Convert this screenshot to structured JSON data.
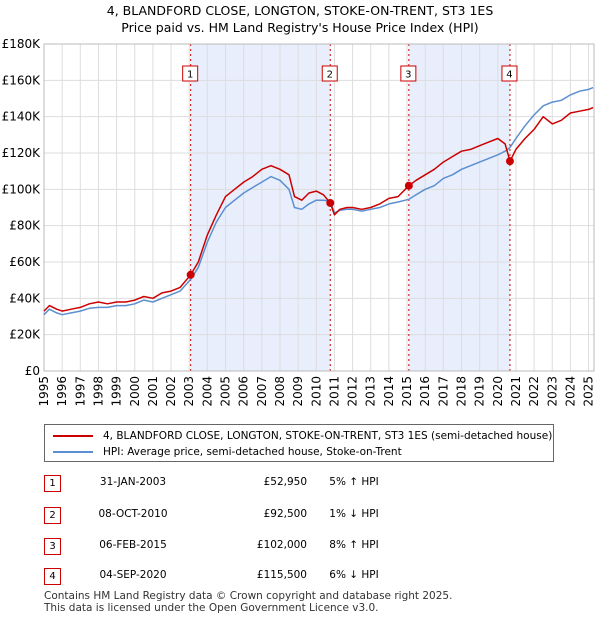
{
  "chart_data": {
    "type": "line",
    "title": "4, BLANDFORD CLOSE, LONGTON, STOKE-ON-TRENT, ST3 1ES",
    "subtitle": "Price paid vs. HM Land Registry's House Price Index (HPI)",
    "xlim": [
      1995,
      2025.3
    ],
    "ylim": [
      0,
      180000
    ],
    "y_ticks": [
      0,
      20000,
      40000,
      60000,
      80000,
      100000,
      120000,
      140000,
      160000,
      180000
    ],
    "y_tick_labels": [
      "£0",
      "£20K",
      "£40K",
      "£60K",
      "£80K",
      "£100K",
      "£120K",
      "£140K",
      "£160K",
      "£180K"
    ],
    "x_ticks": [
      1995,
      1996,
      1997,
      1998,
      1999,
      2000,
      2001,
      2002,
      2003,
      2004,
      2005,
      2006,
      2007,
      2008,
      2009,
      2010,
      2011,
      2012,
      2013,
      2014,
      2015,
      2016,
      2017,
      2018,
      2019,
      2020,
      2021,
      2022,
      2023,
      2024,
      2025
    ],
    "x_tick_labels": [
      "1995",
      "1996",
      "1997",
      "1998",
      "1999",
      "2000",
      "2001",
      "2002",
      "2003",
      "2004",
      "2005",
      "2006",
      "2007",
      "2008",
      "2009",
      "2010",
      "2011",
      "2012",
      "2013",
      "2014",
      "2015",
      "2016",
      "2017",
      "2018",
      "2019",
      "2020",
      "2021",
      "2022",
      "2023",
      "2024",
      "2025"
    ],
    "grid": true,
    "colors": {
      "price_paid": "#cc0000",
      "hpi": "#5b8fd1",
      "shade": "#e8eefb",
      "vline": "#cc0000"
    },
    "series": [
      {
        "name": "4, BLANDFORD CLOSE, LONGTON, STOKE-ON-TRENT, ST3 1ES (semi-detached house)",
        "x": [
          1995.0,
          1995.3,
          1995.7,
          1996.0,
          1996.5,
          1997.0,
          1997.5,
          1998.0,
          1998.5,
          1999.0,
          1999.5,
          2000.0,
          2000.5,
          2001.0,
          2001.5,
          2002.0,
          2002.5,
          2003.08,
          2003.5,
          2004.0,
          2004.5,
          2005.0,
          2005.5,
          2006.0,
          2006.5,
          2007.0,
          2007.5,
          2008.0,
          2008.5,
          2008.8,
          2009.2,
          2009.6,
          2010.0,
          2010.4,
          2010.77,
          2011.0,
          2011.3,
          2011.7,
          2012.0,
          2012.5,
          2013.0,
          2013.5,
          2014.0,
          2014.5,
          2015.1,
          2015.5,
          2016.0,
          2016.5,
          2017.0,
          2017.5,
          2018.0,
          2018.5,
          2019.0,
          2019.5,
          2020.0,
          2020.4,
          2020.67,
          2021.0,
          2021.5,
          2022.0,
          2022.5,
          2023.0,
          2023.5,
          2024.0,
          2024.5,
          2025.0,
          2025.25
        ],
        "values": [
          33000,
          36000,
          34000,
          33000,
          34000,
          35000,
          37000,
          38000,
          37000,
          38000,
          38000,
          39000,
          41000,
          40000,
          43000,
          44000,
          46000,
          52950,
          60000,
          75000,
          86000,
          96000,
          100000,
          104000,
          107000,
          111000,
          113000,
          111000,
          108000,
          96000,
          94000,
          98000,
          99000,
          97000,
          92500,
          86000,
          89000,
          90000,
          90000,
          89000,
          90000,
          92000,
          95000,
          96000,
          102000,
          105000,
          108000,
          111000,
          115000,
          118000,
          121000,
          122000,
          124000,
          126000,
          128000,
          125000,
          115500,
          122000,
          128000,
          133000,
          140000,
          136000,
          138000,
          142000,
          143000,
          144000,
          145000
        ]
      },
      {
        "name": "HPI: Average price, semi-detached house, Stoke-on-Trent",
        "x": [
          1995.0,
          1995.3,
          1995.7,
          1996.0,
          1996.5,
          1997.0,
          1997.5,
          1998.0,
          1998.5,
          1999.0,
          1999.5,
          2000.0,
          2000.5,
          2001.0,
          2001.5,
          2002.0,
          2002.5,
          2003.08,
          2003.5,
          2004.0,
          2004.5,
          2005.0,
          2005.5,
          2006.0,
          2006.5,
          2007.0,
          2007.5,
          2008.0,
          2008.5,
          2008.8,
          2009.2,
          2009.6,
          2010.0,
          2010.4,
          2010.77,
          2011.0,
          2011.3,
          2011.7,
          2012.0,
          2012.5,
          2013.0,
          2013.5,
          2014.0,
          2014.5,
          2015.1,
          2015.5,
          2016.0,
          2016.5,
          2017.0,
          2017.5,
          2018.0,
          2018.5,
          2019.0,
          2019.5,
          2020.0,
          2020.4,
          2020.67,
          2021.0,
          2021.5,
          2022.0,
          2022.5,
          2023.0,
          2023.5,
          2024.0,
          2024.5,
          2025.0,
          2025.25
        ],
        "values": [
          31000,
          34000,
          32000,
          31000,
          32000,
          33000,
          34500,
          35000,
          35000,
          36000,
          36000,
          37000,
          39000,
          38000,
          40000,
          42000,
          44000,
          50500,
          57000,
          71000,
          82000,
          90000,
          94000,
          98000,
          101000,
          104000,
          107000,
          105000,
          100000,
          90000,
          89000,
          92000,
          94000,
          94000,
          93500,
          87000,
          88500,
          89000,
          89000,
          88000,
          89000,
          90000,
          92000,
          93000,
          94500,
          97000,
          100000,
          102000,
          106000,
          108000,
          111000,
          113000,
          115000,
          117000,
          119000,
          121000,
          123000,
          128000,
          135000,
          141000,
          146000,
          148000,
          149000,
          152000,
          154000,
          155000,
          156000
        ]
      }
    ],
    "sales": [
      {
        "label": "1",
        "x": 2003.08,
        "price": 52950
      },
      {
        "label": "2",
        "x": 2010.77,
        "price": 92500
      },
      {
        "label": "3",
        "x": 2015.1,
        "price": 102000
      },
      {
        "label": "4",
        "x": 2020.67,
        "price": 115500
      }
    ],
    "shaded_ranges": [
      [
        2003.08,
        2010.77
      ],
      [
        2015.1,
        2020.67
      ]
    ]
  },
  "legend": {
    "price_paid": "4, BLANDFORD CLOSE, LONGTON, STOKE-ON-TRENT, ST3 1ES (semi-detached house)",
    "hpi": "HPI: Average price, semi-detached house, Stoke-on-Trent"
  },
  "transactions": [
    {
      "num": "1",
      "date": "31-JAN-2003",
      "price": "£52,950",
      "hpi": "5% ↑ HPI"
    },
    {
      "num": "2",
      "date": "08-OCT-2010",
      "price": "£92,500",
      "hpi": "1% ↓ HPI"
    },
    {
      "num": "3",
      "date": "06-FEB-2015",
      "price": "£102,000",
      "hpi": "8% ↑ HPI"
    },
    {
      "num": "4",
      "date": "04-SEP-2020",
      "price": "£115,500",
      "hpi": "6% ↓ HPI"
    }
  ],
  "footer": {
    "line1": "Contains HM Land Registry data © Crown copyright and database right 2025.",
    "line2": "This data is licensed under the Open Government Licence v3.0."
  }
}
